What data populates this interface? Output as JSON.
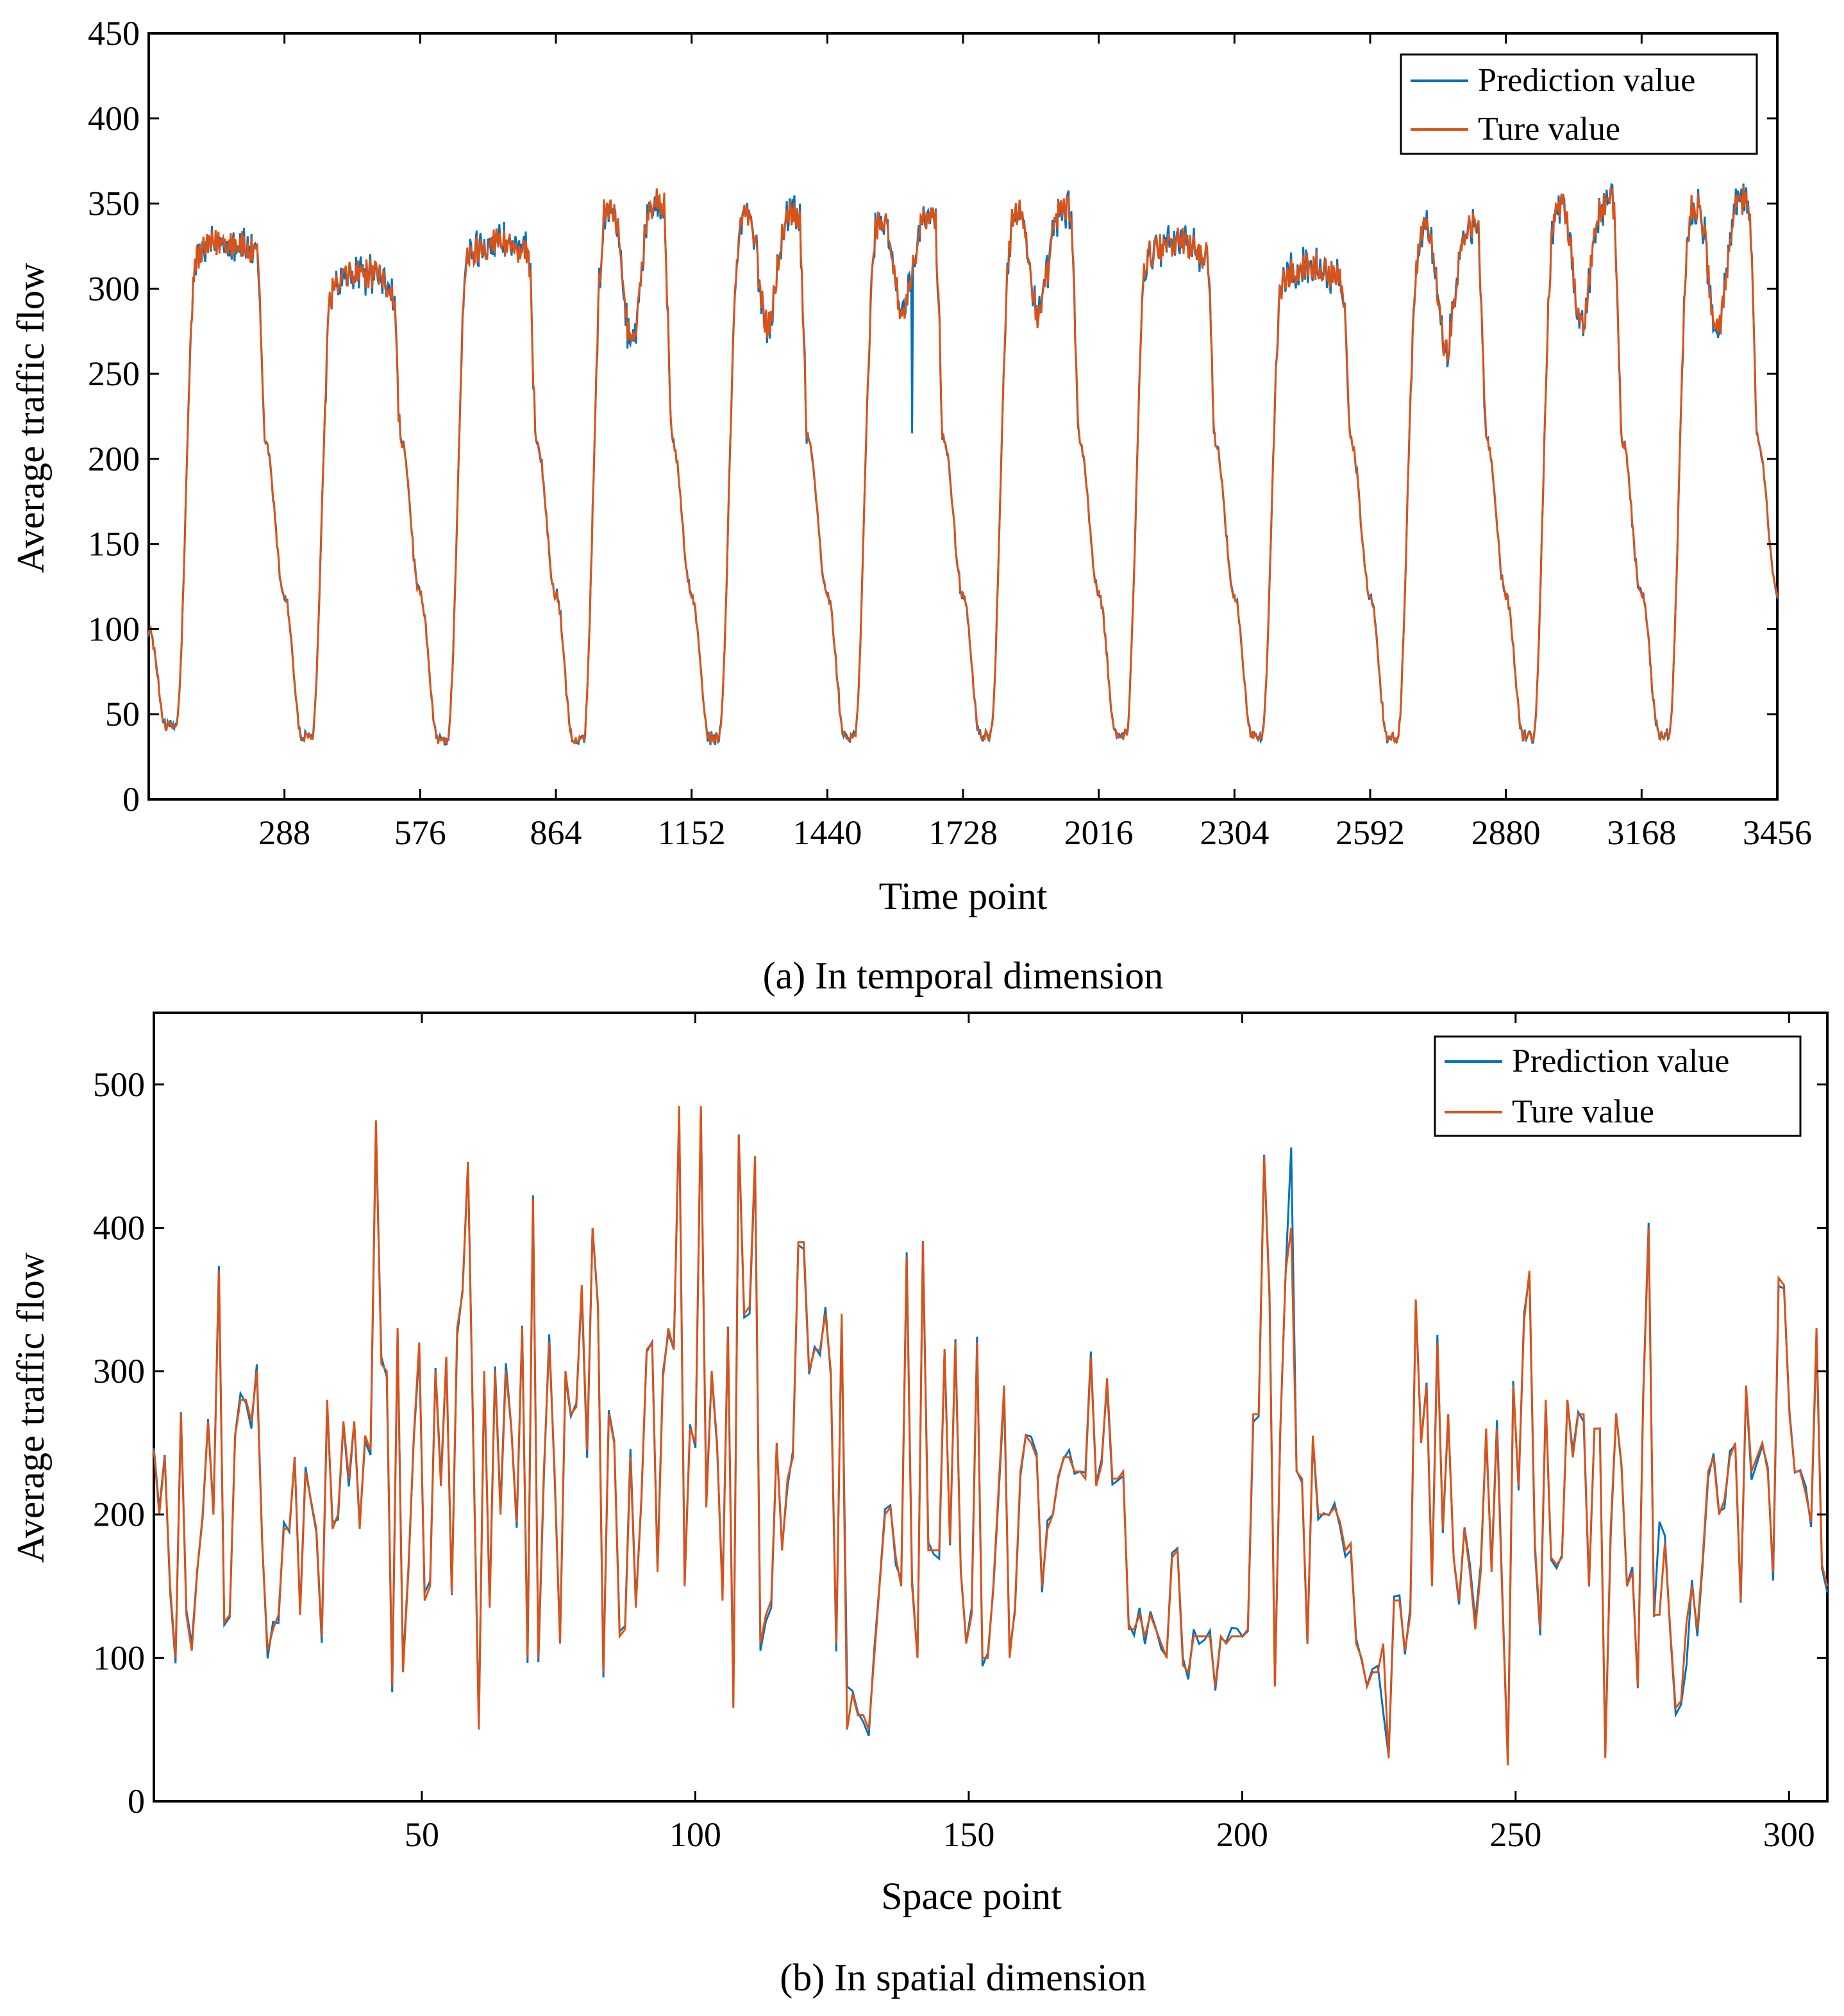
{
  "chart_data": [
    {
      "id": "a",
      "type": "line",
      "caption": "(a) In temporal dimension",
      "xlabel": "Time point",
      "ylabel": "Average traffic flow",
      "xlim": [
        0,
        3456
      ],
      "ylim": [
        0,
        450
      ],
      "xticks": [
        288,
        576,
        864,
        1152,
        1440,
        1728,
        2016,
        2304,
        2592,
        2880,
        3168,
        3456
      ],
      "yticks": [
        0,
        50,
        100,
        150,
        200,
        250,
        300,
        350,
        400,
        450
      ],
      "grid": false,
      "legend_position": "top-right",
      "series_colors": {
        "prediction": "#0072BD",
        "true": "#D95319"
      },
      "legend": [
        "Prediction value",
        "Ture value"
      ],
      "daily_profile": {
        "period": 288,
        "start_value": 100,
        "night_min": [
          43,
          36,
          35,
          34,
          36,
          37,
          38,
          38,
          37,
          36,
          37,
          38
        ],
        "day_peak": [
          340,
          320,
          340,
          355,
          348,
          345,
          350,
          340,
          325,
          340,
          355,
          355
        ],
        "midday_dip": [
          0,
          0,
          0,
          275,
          285,
          290,
          290,
          0,
          0,
          270,
          285,
          280
        ]
      },
      "anomalies": [
        {
          "x": 1620,
          "prediction": 215
        }
      ]
    },
    {
      "id": "b",
      "type": "line",
      "caption": "(b) In spatial dimension",
      "xlabel": "Space point",
      "ylabel": "Average traffic flow",
      "xlim": [
        1,
        307
      ],
      "ylim": [
        0,
        550
      ],
      "xticks": [
        50,
        100,
        150,
        200,
        250,
        300
      ],
      "yticks": [
        0,
        100,
        200,
        300,
        400,
        500
      ],
      "grid": false,
      "legend_position": "top-right",
      "series_colors": {
        "prediction": "#0072BD",
        "true": "#D95319"
      },
      "legend": [
        "Prediction value",
        "Ture value"
      ],
      "true_values": [
        245,
        200,
        240,
        150,
        100,
        270,
        130,
        105,
        160,
        200,
        265,
        200,
        370,
        125,
        130,
        255,
        280,
        280,
        265,
        300,
        180,
        105,
        120,
        130,
        190,
        190,
        240,
        130,
        230,
        210,
        190,
        115,
        280,
        190,
        200,
        265,
        225,
        265,
        190,
        255,
        245,
        475,
        305,
        300,
        80,
        330,
        90,
        160,
        255,
        320,
        140,
        150,
        300,
        220,
        310,
        145,
        330,
        355,
        445,
        250,
        50,
        300,
        135,
        300,
        200,
        300,
        260,
        195,
        330,
        100,
        420,
        100,
        230,
        320,
        230,
        110,
        300,
        270,
        275,
        360,
        245,
        400,
        345,
        90,
        270,
        250,
        115,
        120,
        240,
        135,
        210,
        315,
        320,
        160,
        295,
        330,
        315,
        485,
        150,
        260,
        250,
        485,
        205,
        300,
        250,
        140,
        330,
        65,
        465,
        340,
        345,
        450,
        110,
        130,
        140,
        250,
        175,
        225,
        240,
        390,
        390,
        300,
        315,
        315,
        340,
        300,
        110,
        340,
        50,
        75,
        60,
        60,
        50,
        100,
        150,
        200,
        205,
        170,
        150,
        380,
        150,
        100,
        390,
        175,
        175,
        175,
        315,
        180,
        320,
        160,
        110,
        130,
        320,
        100,
        100,
        150,
        220,
        290,
        100,
        135,
        230,
        255,
        250,
        240,
        150,
        190,
        200,
        225,
        240,
        240,
        230,
        230,
        225,
        310,
        220,
        235,
        295,
        225,
        225,
        230,
        120,
        120,
        130,
        115,
        130,
        120,
        110,
        100,
        170,
        175,
        95,
        90,
        115,
        115,
        115,
        115,
        80,
        115,
        110,
        115,
        115,
        115,
        120,
        270,
        270,
        450,
        350,
        80,
        260,
        370,
        400,
        230,
        225,
        110,
        255,
        200,
        200,
        200,
        205,
        195,
        175,
        180,
        110,
        100,
        80,
        90,
        90,
        110,
        30,
        140,
        140,
        105,
        130,
        350,
        250,
        290,
        150,
        320,
        190,
        270,
        170,
        140,
        190,
        160,
        120,
        160,
        260,
        160,
        260,
        140,
        25,
        290,
        220,
        335,
        370,
        180,
        120,
        280,
        170,
        165,
        170,
        280,
        240,
        270,
        270,
        150,
        260,
        260,
        30,
        190,
        270,
        235,
        150,
        160,
        80,
        280,
        400,
        130,
        130,
        180,
        120,
        65,
        70,
        125,
        150,
        120,
        170,
        230,
        240,
        200,
        210,
        240,
        250,
        140,
        290,
        230,
        240,
        250,
        230,
        160,
        365,
        360,
        270,
        230,
        230,
        215,
        195,
        330,
        165,
        150
      ],
      "prediction_deviations": [
        {
          "x": 128,
          "value": 80
        },
        {
          "x": 209,
          "value": 456
        },
        {
          "x": 226,
          "value": 62
        },
        {
          "x": 276,
          "value": 195
        },
        {
          "x": 281,
          "value": 95
        }
      ]
    }
  ]
}
